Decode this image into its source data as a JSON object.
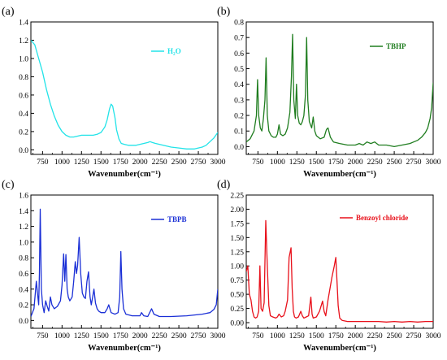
{
  "chart_data": [
    {
      "panel": "(a)",
      "type": "line",
      "xlabel": "Wavenumber(cm⁻¹)",
      "ylabel": "",
      "xlim": [
        600,
        3000
      ],
      "ylim": [
        -0.05,
        1.4
      ],
      "xticks": [
        750,
        1000,
        1250,
        1500,
        1750,
        2000,
        2250,
        2500,
        2750,
        3000
      ],
      "yticks": [
        0.0,
        0.2,
        0.4,
        0.6,
        0.8,
        1.0,
        1.2,
        1.4
      ],
      "ytick_labels": [
        "0.0",
        "0.2",
        "0.4",
        "0.6",
        "0.8",
        "1.0",
        "1.2",
        "1.4"
      ],
      "legend_position": "top-right",
      "series": [
        {
          "name": "H₂O",
          "color": "#22e3e8",
          "x": [
            600,
            650,
            700,
            750,
            800,
            850,
            900,
            950,
            1000,
            1050,
            1100,
            1150,
            1200,
            1250,
            1300,
            1350,
            1400,
            1450,
            1500,
            1550,
            1580,
            1610,
            1630,
            1650,
            1680,
            1700,
            1730,
            1760,
            1800,
            1850,
            1900,
            1950,
            2000,
            2050,
            2100,
            2130,
            2160,
            2200,
            2250,
            2300,
            2400,
            2500,
            2600,
            2700,
            2750,
            2800,
            2850,
            2900,
            2950,
            3000
          ],
          "y": [
            1.2,
            1.15,
            1.0,
            0.85,
            0.66,
            0.5,
            0.37,
            0.27,
            0.2,
            0.16,
            0.14,
            0.14,
            0.15,
            0.16,
            0.16,
            0.16,
            0.16,
            0.17,
            0.19,
            0.25,
            0.33,
            0.45,
            0.5,
            0.48,
            0.35,
            0.22,
            0.12,
            0.07,
            0.06,
            0.05,
            0.05,
            0.05,
            0.06,
            0.07,
            0.08,
            0.09,
            0.08,
            0.07,
            0.06,
            0.05,
            0.03,
            0.02,
            0.01,
            0.01,
            0.02,
            0.03,
            0.05,
            0.09,
            0.13,
            0.19
          ]
        }
      ]
    },
    {
      "panel": "(b)",
      "type": "line",
      "xlabel": "Wavenumber(cm⁻¹)",
      "ylabel": "",
      "xlim": [
        600,
        3000
      ],
      "ylim": [
        -0.05,
        0.8
      ],
      "xticks": [
        750,
        1000,
        1250,
        1500,
        1750,
        2000,
        2250,
        2500,
        2750,
        3000
      ],
      "yticks": [
        0.0,
        0.1,
        0.2,
        0.3,
        0.4,
        0.5,
        0.6,
        0.7,
        0.8
      ],
      "ytick_labels": [
        "0.0",
        "0.1",
        "0.2",
        "0.3",
        "0.4",
        "0.5",
        "0.6",
        "0.7",
        "0.8"
      ],
      "legend_position": "top-right",
      "series": [
        {
          "name": "TBHP",
          "color": "#1f7d1f",
          "x": [
            600,
            650,
            700,
            730,
            745,
            760,
            780,
            800,
            820,
            840,
            855,
            870,
            890,
            920,
            950,
            980,
            1000,
            1020,
            1040,
            1070,
            1100,
            1130,
            1160,
            1180,
            1195,
            1210,
            1230,
            1245,
            1260,
            1280,
            1300,
            1320,
            1340,
            1360,
            1375,
            1390,
            1410,
            1440,
            1460,
            1480,
            1500,
            1550,
            1600,
            1630,
            1650,
            1680,
            1720,
            1800,
            1900,
            2000,
            2050,
            2100,
            2150,
            2200,
            2250,
            2300,
            2400,
            2500,
            2600,
            2700,
            2800,
            2850,
            2900,
            2930,
            2960,
            2980,
            3000
          ],
          "y": [
            0.03,
            0.05,
            0.1,
            0.2,
            0.43,
            0.2,
            0.12,
            0.1,
            0.18,
            0.3,
            0.57,
            0.2,
            0.1,
            0.07,
            0.06,
            0.06,
            0.08,
            0.14,
            0.08,
            0.07,
            0.08,
            0.12,
            0.22,
            0.45,
            0.72,
            0.3,
            0.18,
            0.4,
            0.2,
            0.15,
            0.14,
            0.16,
            0.2,
            0.33,
            0.7,
            0.3,
            0.16,
            0.12,
            0.19,
            0.1,
            0.07,
            0.05,
            0.06,
            0.11,
            0.12,
            0.06,
            0.03,
            0.02,
            0.01,
            0.01,
            0.02,
            0.01,
            0.03,
            0.02,
            0.03,
            0.01,
            0.01,
            0.0,
            0.01,
            0.02,
            0.04,
            0.06,
            0.09,
            0.12,
            0.18,
            0.25,
            0.41
          ]
        }
      ]
    },
    {
      "panel": "(c)",
      "type": "line",
      "xlabel": "Wavenumber(cm⁻¹)",
      "ylabel": "",
      "xlim": [
        600,
        3000
      ],
      "ylim": [
        -0.1,
        1.6
      ],
      "xticks": [
        750,
        1000,
        1250,
        1500,
        1750,
        2000,
        2250,
        2500,
        2750,
        3000
      ],
      "yticks": [
        0.0,
        0.2,
        0.4,
        0.6,
        0.8,
        1.0,
        1.2,
        1.4,
        1.6
      ],
      "ytick_labels": [
        "0.0",
        "0.2",
        "0.4",
        "0.6",
        "0.8",
        "1.0",
        "1.2",
        "1.4",
        "1.6"
      ],
      "legend_position": "top-right",
      "series": [
        {
          "name": "TBPB",
          "color": "#1a2fd6",
          "x": [
            600,
            640,
            670,
            690,
            700,
            710,
            720,
            735,
            750,
            770,
            790,
            810,
            830,
            850,
            870,
            900,
            940,
            980,
            1000,
            1020,
            1035,
            1050,
            1065,
            1080,
            1100,
            1130,
            1150,
            1170,
            1185,
            1200,
            1220,
            1240,
            1260,
            1280,
            1300,
            1320,
            1340,
            1360,
            1375,
            1390,
            1410,
            1430,
            1450,
            1470,
            1500,
            1550,
            1580,
            1600,
            1630,
            1680,
            1720,
            1740,
            1755,
            1770,
            1790,
            1820,
            1900,
            2000,
            2020,
            2050,
            2100,
            2150,
            2180,
            2250,
            2400,
            2600,
            2800,
            2900,
            2950,
            2980,
            3000
          ],
          "y": [
            0.05,
            0.15,
            0.5,
            0.3,
            0.2,
            0.6,
            1.42,
            0.4,
            0.2,
            0.1,
            0.25,
            0.18,
            0.12,
            0.3,
            0.2,
            0.15,
            0.18,
            0.25,
            0.45,
            0.85,
            0.5,
            0.84,
            0.4,
            0.3,
            0.25,
            0.3,
            0.5,
            0.75,
            0.6,
            0.7,
            1.06,
            0.6,
            0.35,
            0.3,
            0.28,
            0.5,
            0.62,
            0.3,
            0.2,
            0.28,
            0.4,
            0.22,
            0.15,
            0.12,
            0.1,
            0.1,
            0.15,
            0.2,
            0.1,
            0.08,
            0.1,
            0.3,
            0.88,
            0.4,
            0.15,
            0.08,
            0.06,
            0.06,
            0.1,
            0.06,
            0.05,
            0.15,
            0.08,
            0.05,
            0.05,
            0.06,
            0.08,
            0.1,
            0.14,
            0.2,
            0.4
          ]
        }
      ]
    },
    {
      "panel": "(d)",
      "type": "line",
      "xlabel": "Wavenumber(cm⁻¹)",
      "ylabel": "",
      "xlim": [
        600,
        3000
      ],
      "ylim": [
        -0.1,
        2.25
      ],
      "xticks": [
        750,
        1000,
        1250,
        1500,
        1750,
        2000,
        2250,
        2500,
        2750,
        3000
      ],
      "yticks": [
        0.0,
        0.25,
        0.5,
        0.75,
        1.0,
        1.25,
        1.5,
        1.75,
        2.0,
        2.25
      ],
      "ytick_labels": [
        "0.00",
        "0.25",
        "0.50",
        "0.75",
        "1.00",
        "1.25",
        "1.50",
        "1.75",
        "2.00",
        "2.25"
      ],
      "legend_position": "top-right",
      "series": [
        {
          "name": "Benzoyl chloride",
          "color": "#e8101a",
          "x": [
            600,
            620,
            640,
            660,
            680,
            700,
            720,
            740,
            760,
            775,
            790,
            810,
            830,
            850,
            870,
            890,
            910,
            940,
            980,
            1000,
            1020,
            1050,
            1080,
            1100,
            1130,
            1150,
            1175,
            1190,
            1205,
            1220,
            1240,
            1270,
            1300,
            1320,
            1340,
            1370,
            1400,
            1430,
            1445,
            1460,
            1500,
            1540,
            1580,
            1600,
            1620,
            1650,
            1700,
            1730,
            1750,
            1770,
            1780,
            1800,
            1830,
            1900,
            2000,
            2100,
            2200,
            2300,
            2400,
            2500,
            2600,
            2700,
            2800,
            2900,
            3000
          ],
          "y": [
            0.9,
            1.0,
            0.5,
            0.4,
            0.2,
            0.1,
            0.08,
            0.1,
            0.2,
            1.0,
            0.25,
            0.2,
            0.35,
            1.8,
            1.0,
            0.3,
            0.12,
            0.1,
            0.08,
            0.1,
            0.15,
            0.1,
            0.12,
            0.2,
            0.4,
            1.15,
            1.32,
            0.6,
            0.2,
            0.1,
            0.08,
            0.1,
            0.2,
            0.12,
            0.08,
            0.1,
            0.12,
            0.45,
            0.15,
            0.08,
            0.1,
            0.2,
            0.38,
            0.2,
            0.12,
            0.4,
            0.8,
            1.0,
            1.15,
            0.6,
            0.3,
            0.08,
            0.04,
            0.02,
            0.02,
            0.02,
            0.02,
            0.02,
            0.01,
            0.02,
            0.01,
            0.02,
            0.01,
            0.02,
            0.02
          ]
        }
      ]
    }
  ]
}
